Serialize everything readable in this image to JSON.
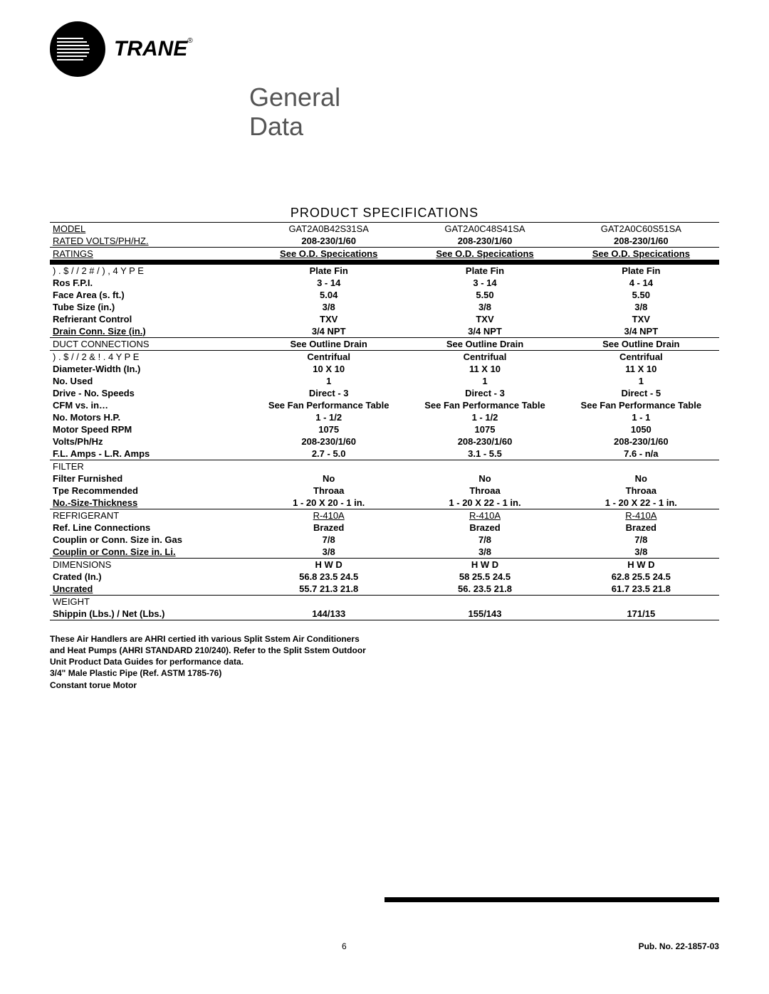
{
  "brand": "TRANE",
  "title_line1": "General",
  "title_line2": "Data",
  "section_title": "PRODUCT SPECIFICATIONS",
  "page_number": "6",
  "pub_no": "Pub. No. 22-1857-03",
  "models": [
    "GAT2A0B42S31SA",
    "GAT2A0C48S41SA",
    "GAT2A0C60S51SA"
  ],
  "rows": [
    {
      "label": "MODEL",
      "vals": [
        "GAT2A0B42S31SA",
        "GAT2A0C48S41SA",
        "GAT2A0C60S51SA"
      ],
      "label_u": true,
      "top": true
    },
    {
      "label": "RATED VOLTS/PH/HZ.",
      "vals": [
        "208-230/1/60",
        "208-230/1/60",
        "208-230/1/60"
      ],
      "label_u": true,
      "bold_vals": true
    },
    {
      "label": "RATINGS",
      "vals": [
        "See O.D. Specications",
        "See O.D. Specications",
        "See O.D. Specications"
      ],
      "label_u": true,
      "bold_vals": true,
      "u_vals": true,
      "top": true
    },
    {
      "label": ") . $ / / 2  # / ) ,     4 Y P E",
      "vals": [
        "Plate Fin",
        "Plate Fin",
        "Plate Fin"
      ],
      "bold_vals": true,
      "bar": true
    },
    {
      "label": "Ros  F.P.I.",
      "vals": [
        "3 - 14",
        "3 - 14",
        "4 - 14"
      ],
      "bold": true
    },
    {
      "label": "Face Area (s. ft.)",
      "vals": [
        "5.04",
        "5.50",
        "5.50"
      ],
      "bold": true
    },
    {
      "label": "Tube Size (in.)",
      "vals": [
        "3/8",
        "3/8",
        "3/8"
      ],
      "bold": true
    },
    {
      "label": "Refrierant Control",
      "vals": [
        "TXV",
        "TXV",
        "TXV"
      ],
      "bold": true
    },
    {
      "label": "Drain Conn. Size (in.)",
      "vals": [
        "3/4 NPT",
        "3/4 NPT",
        "3/4 NPT"
      ],
      "bold": true,
      "label_u": true
    },
    {
      "label": "DUCT CONNECTIONS",
      "vals": [
        "See Outline Drain",
        "See Outline Drain",
        "See Outline Drain"
      ],
      "bold_vals": true,
      "top": true
    },
    {
      "label": ") . $ / / 2  & ! .     4 Y P E",
      "vals": [
        "Centrifual",
        "Centrifual",
        "Centrifual"
      ],
      "bold_vals": true,
      "top": true
    },
    {
      "label": "Diameter-Width (In.)",
      "vals": [
        "10 X 10",
        "11 X 10",
        "11 X 10"
      ],
      "bold": true
    },
    {
      "label": "No. Used",
      "vals": [
        "1",
        "1",
        "1"
      ],
      "bold": true
    },
    {
      "label": "Drive - No. Speeds",
      "vals": [
        "Direct - 3",
        "Direct - 3",
        "Direct - 5"
      ],
      "bold": true
    },
    {
      "label": "CFM vs. in…",
      "vals": [
        "See Fan Performance Table",
        "See Fan Performance Table",
        "See Fan Performance Table"
      ],
      "bold": true
    },
    {
      "label": "No. Motors  H.P.",
      "vals": [
        "1 - 1/2",
        "1 - 1/2",
        "1 - 1"
      ],
      "bold": true
    },
    {
      "label": "Motor Speed RPM",
      "vals": [
        "1075",
        "1075",
        "1050"
      ],
      "bold": true
    },
    {
      "label": "Volts/Ph/Hz",
      "vals": [
        "208-230/1/60",
        "208-230/1/60",
        "208-230/1/60"
      ],
      "bold": true
    },
    {
      "label": "F.L. Amps - L.R. Amps",
      "vals": [
        "2.7 - 5.0",
        "3.1 - 5.5",
        "7.6 - n/a"
      ],
      "bold": true
    },
    {
      "label": "FILTER",
      "vals": [
        "",
        "",
        ""
      ],
      "top": true
    },
    {
      "label": "Filter Furnished",
      "vals": [
        "No",
        "No",
        "No"
      ],
      "bold": true
    },
    {
      "label": "Tpe Recommended",
      "vals": [
        "Throaa",
        "Throaa",
        "Throaa"
      ],
      "bold": true
    },
    {
      "label": "No.-Size-Thickness",
      "vals": [
        "1 - 20 X 20 - 1 in.",
        "1 - 20 X 22 - 1 in.",
        "1 - 20 X 22 - 1 in."
      ],
      "bold": true,
      "label_u": true
    },
    {
      "label": "REFRIGERANT",
      "vals": [
        "R-410A",
        "R-410A",
        "R-410A"
      ],
      "top": true,
      "u_vals": true
    },
    {
      "label": "Ref. Line Connections",
      "vals": [
        "Brazed",
        "Brazed",
        "Brazed"
      ],
      "bold": true
    },
    {
      "label": "Couplin or Conn. Size  in. Gas",
      "vals": [
        "7/8",
        "7/8",
        "7/8"
      ],
      "bold": true
    },
    {
      "label": "Couplin or Conn. Size  in. Li.",
      "vals": [
        "3/8",
        "3/8",
        "3/8"
      ],
      "bold": true,
      "label_u": true
    },
    {
      "label": "DIMENSIONS",
      "vals": [
        "H  W  D",
        "H  W  D",
        "H  W  D"
      ],
      "bold_vals": true,
      "top": true
    },
    {
      "label": "Crated (In.)",
      "vals": [
        "56.8  23.5  24.5",
        "58  25.5  24.5",
        "62.8  25.5  24.5"
      ],
      "bold": true
    },
    {
      "label": "Uncrated",
      "vals": [
        "55.7  21.3  21.8",
        "56.  23.5  21.8",
        "61.7  23.5  21.8"
      ],
      "bold": true,
      "label_u": true
    },
    {
      "label": "WEIGHT",
      "vals": [
        "",
        "",
        ""
      ],
      "top": true
    },
    {
      "label": "Shippin (Lbs.) / Net (Lbs.)",
      "vals": [
        "144/133",
        "155/143",
        "171/15"
      ],
      "bold": true,
      "bottom": true
    }
  ],
  "footnotes": [
    "These Air Handlers are AHRI certied ith various Split Sstem Air Conditioners",
    "and Heat Pumps (AHRI STANDARD 210/240).  Refer to the Split Sstem Outdoor",
    "Unit Product Data Guides for performance data.",
    "3/4\" Male Plastic Pipe (Ref.  ASTM 1785-76)",
    " Constant torue Motor"
  ]
}
